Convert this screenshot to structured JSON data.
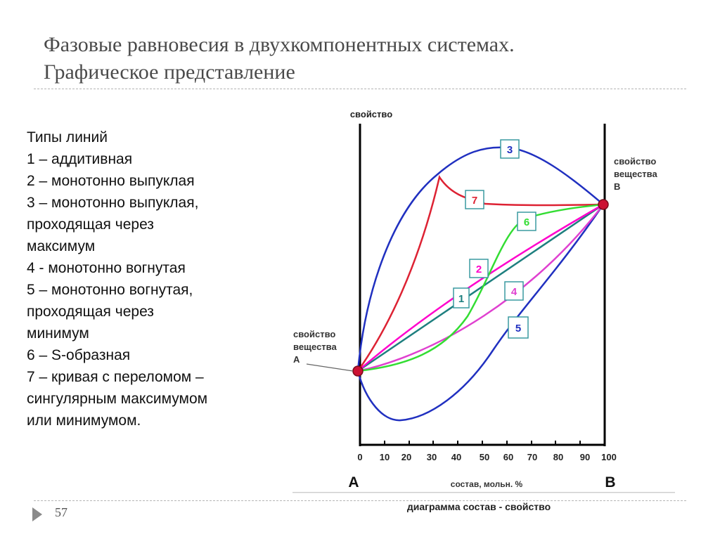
{
  "slide": {
    "title_line1": "Фазовые равновесия в двухкомпонентных системах.",
    "title_line2": "Графическое представление",
    "page_number": "57"
  },
  "legend": {
    "lines": [
      "Типы линий",
      "1 – аддитивная",
      "2 – монотонно выпуклая",
      "3 – монотонно выпуклая,",
      "проходящая через",
      "максимум",
      "4 - монотонно вогнутая",
      "5 – монотонно вогнутая,",
      "проходящая через",
      "минимум",
      "6 – S-образная",
      "7 – кривая с переломом –",
      "сингулярным максимумом",
      "или минимумом."
    ]
  },
  "diagram": {
    "y_axis_label": "свойство",
    "label_a_line1": "свойство",
    "label_a_line2": "вещества",
    "label_a_line3": "А",
    "label_b_line1": "свойство",
    "label_b_line2": "вещества",
    "label_b_line3": "В",
    "x_ticks": [
      "0",
      "10",
      "20",
      "30",
      "40",
      "50",
      "60",
      "70",
      "80",
      "90",
      "100"
    ],
    "end_a": "A",
    "end_b": "B",
    "x_axis_label": "состав, мольн. %",
    "caption": "диаграмма состав - свойство",
    "curve_labels": [
      "1",
      "2",
      "3",
      "4",
      "5",
      "6",
      "7"
    ],
    "colors": {
      "axis": "#000000",
      "curve_1": "#1e7f7f",
      "curve_2": "#ff00cc",
      "curve_3": "#2030c0",
      "curve_4": "#e040d0",
      "curve_5": "#2030c0",
      "curve_6": "#33dd33",
      "curve_7": "#dd2233",
      "endpoint": "#cc1133"
    }
  }
}
